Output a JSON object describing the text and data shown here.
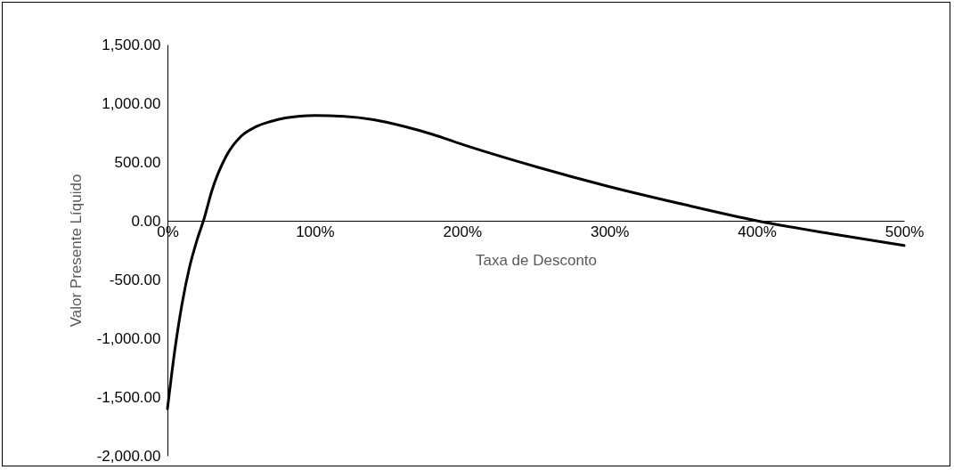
{
  "chart_data": {
    "type": "line",
    "xlabel": "Taxa de Desconto",
    "ylabel": "Valor Presente Líquido",
    "x": [
      0,
      5,
      10,
      15,
      20,
      25,
      30,
      40,
      50,
      60,
      70,
      80,
      90,
      100,
      120,
      140,
      160,
      180,
      200,
      250,
      300,
      350,
      400,
      450,
      500
    ],
    "series": [
      {
        "color": "#000000",
        "values": [
          -1600,
          -1100,
          -700,
          -394,
          -167,
          23,
          250,
          553,
          720,
          800,
          845,
          875,
          890,
          895,
          888,
          860,
          805,
          735,
          650,
          460,
          290,
          140,
          0,
          -110,
          -210
        ]
      }
    ],
    "xlim": [
      0,
      500
    ],
    "xticks": [
      {
        "value": 0,
        "label": "0%"
      },
      {
        "value": 100,
        "label": "100%"
      },
      {
        "value": 200,
        "label": "200%"
      },
      {
        "value": 300,
        "label": "300%"
      },
      {
        "value": 400,
        "label": "400%"
      },
      {
        "value": 500,
        "label": "500%"
      }
    ],
    "ylim": [
      -2000,
      1500
    ],
    "yticks": [
      {
        "value": -2000,
        "label": "-2,000.00"
      },
      {
        "value": -1500,
        "label": "-1,500.00"
      },
      {
        "value": -1000,
        "label": "-1,000.00"
      },
      {
        "value": -500,
        "label": "-500.00"
      },
      {
        "value": 0,
        "label": "0.00"
      },
      {
        "value": 500,
        "label": "500.00"
      },
      {
        "value": 1000,
        "label": "1,000.00"
      },
      {
        "value": 1500,
        "label": "1,500.00"
      }
    ],
    "grid": false,
    "marker": "none",
    "line_style": "solid"
  }
}
